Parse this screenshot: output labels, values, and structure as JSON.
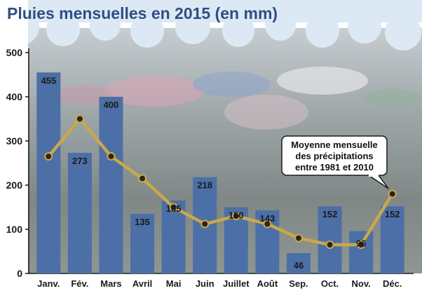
{
  "title": "Pluies mensuelles en 2015 (en mm)",
  "colors": {
    "bar": "#4d6fa7",
    "line": "#c9a84c",
    "marker": "#2b2418",
    "title": "#2e4f86",
    "sky": "#dce9f4"
  },
  "chart_data": {
    "type": "bar",
    "title": "Pluies mensuelles en 2015 (en mm)",
    "xlabel": "",
    "ylabel": "",
    "ylim": [
      0,
      500
    ],
    "yticks": [
      0,
      100,
      200,
      300,
      400,
      500
    ],
    "grid": false,
    "categories": [
      "Janv.",
      "Fév.",
      "Mars",
      "Avril",
      "Mai",
      "Juin",
      "Juillet",
      "Août",
      "Sep.",
      "Oct.",
      "Nov.",
      "Déc."
    ],
    "series": [
      {
        "type": "bar",
        "values": [
          455,
          273,
          400,
          135,
          165,
          218,
          150,
          143,
          46,
          152,
          96,
          152
        ],
        "data_labels": [
          "455",
          "273",
          "400",
          "135",
          "165",
          "218",
          "150",
          "143",
          "46",
          "152",
          "96",
          "152"
        ]
      },
      {
        "type": "line",
        "values": [
          265,
          350,
          265,
          215,
          150,
          112,
          130,
          112,
          80,
          65,
          65,
          180
        ]
      }
    ],
    "annotation": {
      "lines": [
        "Moyenne mensuelle",
        "des précipitations",
        "entre 1981 et 2010"
      ]
    }
  }
}
